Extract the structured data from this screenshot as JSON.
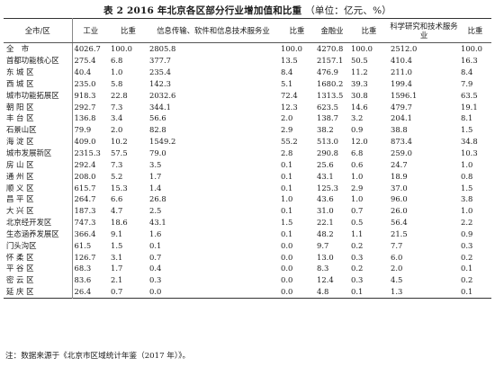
{
  "title": "表 2  2016 年北京各区部分行业增加值和比重",
  "unit": "（单位：亿元、%）",
  "columns": [
    "全市/区",
    "工业",
    "比重",
    "信息传输、软件和信息技术服务业",
    "比重",
    "金融业",
    "比重",
    "科学研究和技术服务业",
    "比重"
  ],
  "rows": [
    [
      "全　市",
      "4026.7",
      "100.0",
      "2805.8",
      "100.0",
      "4270.8",
      "100.0",
      "2512.0",
      "100.0"
    ],
    [
      "首都功能核心区",
      "275.4",
      "6.8",
      "377.7",
      "13.5",
      "2157.1",
      "50.5",
      "410.4",
      "16.3"
    ],
    [
      "东 城 区",
      "40.4",
      "1.0",
      "235.4",
      "8.4",
      "476.9",
      "11.2",
      "211.0",
      "8.4"
    ],
    [
      "西 城 区",
      "235.0",
      "5.8",
      "142.3",
      "5.1",
      "1680.2",
      "39.3",
      "199.4",
      "7.9"
    ],
    [
      "城市功能拓展区",
      "918.3",
      "22.8",
      "2032.6",
      "72.4",
      "1313.5",
      "30.8",
      "1596.1",
      "63.5"
    ],
    [
      "朝 阳 区",
      "292.7",
      "7.3",
      "344.1",
      "12.3",
      "623.5",
      "14.6",
      "479.7",
      "19.1"
    ],
    [
      "丰 台 区",
      "136.8",
      "3.4",
      "56.6",
      "2.0",
      "138.7",
      "3.2",
      "204.1",
      "8.1"
    ],
    [
      "石景山区",
      "79.9",
      "2.0",
      "82.8",
      "2.9",
      "38.2",
      "0.9",
      "38.8",
      "1.5"
    ],
    [
      "海 淀 区",
      "409.0",
      "10.2",
      "1549.2",
      "55.2",
      "513.0",
      "12.0",
      "873.4",
      "34.8"
    ],
    [
      "城市发展新区",
      "2315.3",
      "57.5",
      "79.0",
      "2.8",
      "290.8",
      "6.8",
      "259.0",
      "10.3"
    ],
    [
      "房 山 区",
      "292.4",
      "7.3",
      "3.5",
      "0.1",
      "25.6",
      "0.6",
      "24.7",
      "1.0"
    ],
    [
      "通 州 区",
      "208.0",
      "5.2",
      "1.7",
      "0.1",
      "43.1",
      "1.0",
      "18.9",
      "0.8"
    ],
    [
      "顺 义 区",
      "615.7",
      "15.3",
      "1.4",
      "0.1",
      "125.3",
      "2.9",
      "37.0",
      "1.5"
    ],
    [
      "昌 平 区",
      "264.7",
      "6.6",
      "26.8",
      "1.0",
      "43.6",
      "1.0",
      "96.0",
      "3.8"
    ],
    [
      "大 兴 区",
      "187.3",
      "4.7",
      "2.5",
      "0.1",
      "31.0",
      "0.7",
      "26.0",
      "1.0"
    ],
    [
      "北京经开发区",
      "747.3",
      "18.6",
      "43.1",
      "1.5",
      "22.1",
      "0.5",
      "56.4",
      "2.2"
    ],
    [
      "生态涵养发展区",
      "366.4",
      "9.1",
      "1.6",
      "0.1",
      "48.2",
      "1.1",
      "21.5",
      "0.9"
    ],
    [
      "门头沟区",
      "61.5",
      "1.5",
      "0.1",
      "0.0",
      "9.7",
      "0.2",
      "7.7",
      "0.3"
    ],
    [
      "怀 柔 区",
      "126.7",
      "3.1",
      "0.7",
      "0.0",
      "13.0",
      "0.3",
      "6.0",
      "0.2"
    ],
    [
      "平 谷 区",
      "68.3",
      "1.7",
      "0.4",
      "0.0",
      "8.3",
      "0.2",
      "2.0",
      "0.1"
    ],
    [
      "密 云 区",
      "83.6",
      "2.1",
      "0.3",
      "0.0",
      "12.4",
      "0.3",
      "4.5",
      "0.2"
    ],
    [
      "延 庆 区",
      "26.4",
      "0.7",
      "0.0",
      "0.0",
      "4.8",
      "0.1",
      "1.3",
      "0.1"
    ]
  ],
  "note": "注：数据来源于《北京市区域统计年鉴（2017 年）》。"
}
